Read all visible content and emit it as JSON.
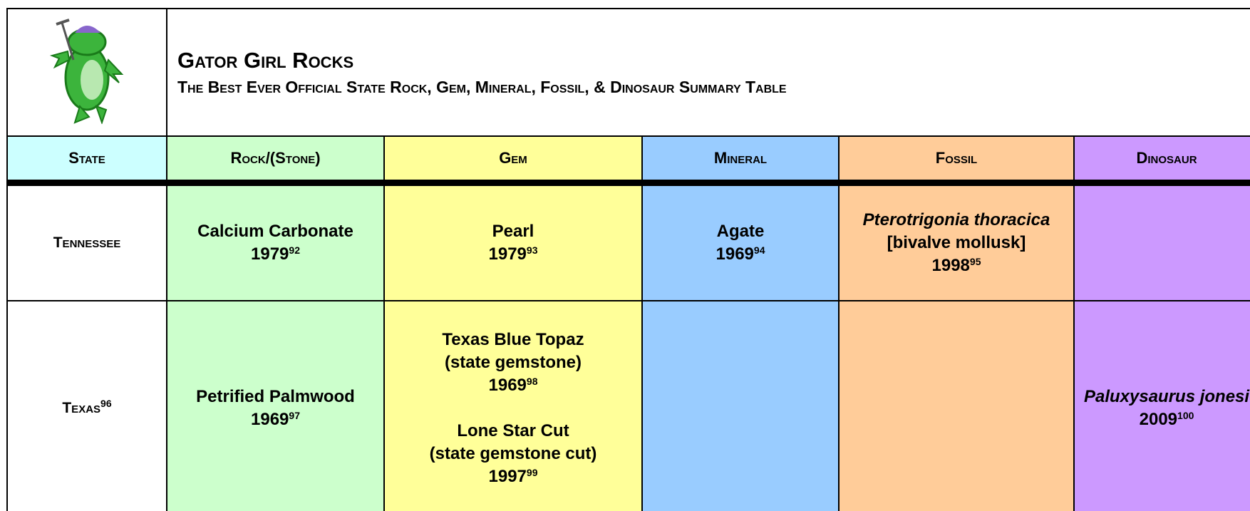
{
  "header": {
    "title": "Gator Girl Rocks",
    "subtitle": "The Best Ever Official State Rock, Gem, Mineral, Fossil, & Dinosaur Summary Table"
  },
  "table": {
    "columns": [
      "State",
      "Rock/(Stone)",
      "Gem",
      "Mineral",
      "Fossil",
      "Dinosaur"
    ],
    "rows": [
      {
        "state": {
          "name": "Tennessee"
        },
        "cells": [
          [
            {
              "name": "Calcium Carbonate",
              "year": "1979",
              "note": "92"
            }
          ],
          [
            {
              "name": "Pearl",
              "year": "1979",
              "note": "93"
            }
          ],
          [
            {
              "name": "Agate",
              "year": "1969",
              "note": "94"
            }
          ],
          [
            {
              "name": "Pterotrigonia thoracica",
              "italic": true,
              "detail": "[bivalve mollusk]",
              "year": "1998",
              "note": "95"
            }
          ],
          []
        ]
      },
      {
        "state": {
          "name": "Texas",
          "note": "96"
        },
        "cells": [
          [
            {
              "name": "Petrified Palmwood",
              "year": "1969",
              "note": "97"
            }
          ],
          [
            {
              "name": "Texas Blue Topaz",
              "detail": "(state gemstone)",
              "year": "1969",
              "note": "98"
            },
            {
              "name": "Lone Star Cut",
              "detail": "(state gemstone cut)",
              "year": "1997",
              "note": "99"
            }
          ],
          [],
          [],
          [
            {
              "name": "Paluxysaurus jonesi",
              "italic": true,
              "year": "2009",
              "note": "100"
            }
          ]
        ]
      }
    ]
  }
}
